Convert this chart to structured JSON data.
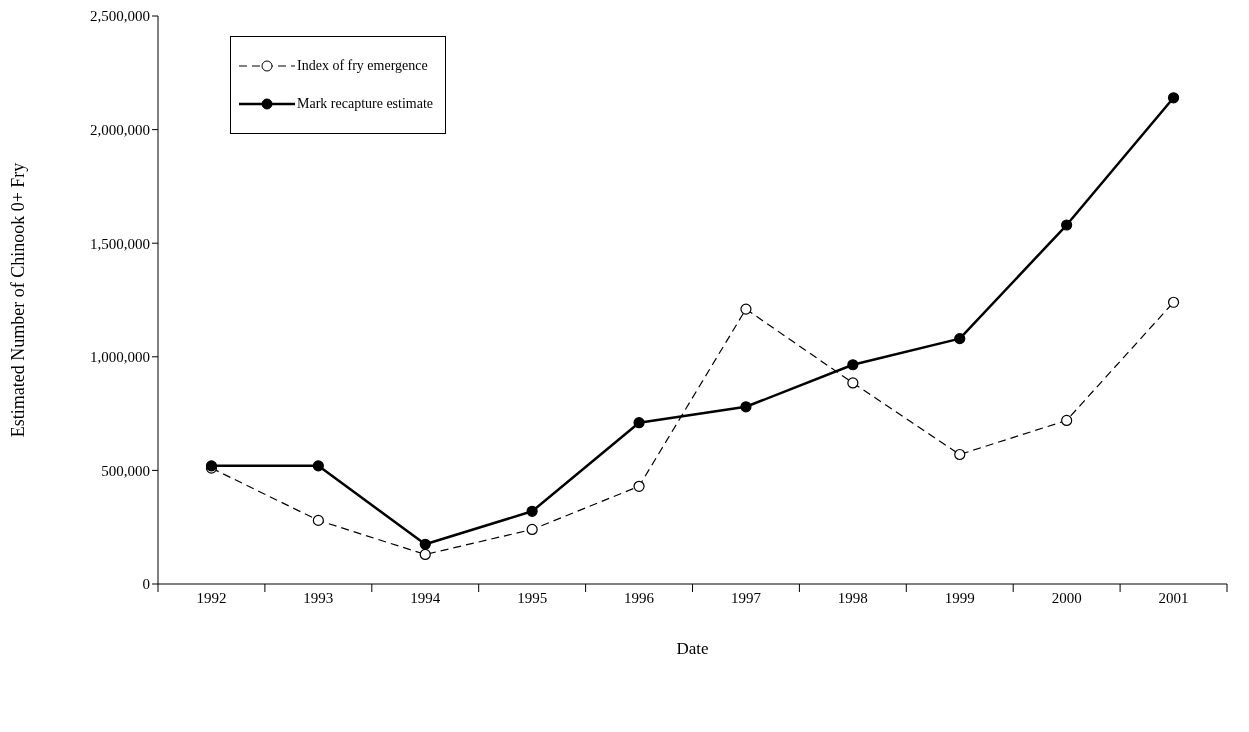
{
  "chart_data": {
    "type": "line",
    "xlabel": "Date",
    "ylabel": "Estimated Number of Chinook 0+ Fry",
    "categories": [
      "1992",
      "1993",
      "1994",
      "1995",
      "1996",
      "1997",
      "1998",
      "1999",
      "2000",
      "2001"
    ],
    "series": [
      {
        "name": "Index of fry emergence",
        "color": "#000000",
        "line_style": "dashed",
        "values": [
          510000,
          280000,
          130000,
          240000,
          430000,
          1210000,
          885000,
          570000,
          720000,
          1240000
        ]
      },
      {
        "name": "Mark recapture estimate",
        "color": "#000000",
        "line_style": "solid",
        "values": [
          520000,
          520000,
          175000,
          320000,
          710000,
          780000,
          965000,
          1080000,
          1580000,
          2140000
        ]
      }
    ],
    "ylim": [
      0,
      2500000
    ],
    "yticks": [
      0,
      {
        "value": 500000,
        "label": "500,000"
      },
      {
        "value": 1000000,
        "label": "1,000,000"
      },
      {
        "value": 1500000,
        "label": "1,500,000"
      },
      {
        "value": 2000000,
        "label": "2,000,000"
      },
      {
        "value": 2500000,
        "label": "2,500,000"
      }
    ],
    "grid": false,
    "legend": "top left",
    "marker": "circle"
  }
}
